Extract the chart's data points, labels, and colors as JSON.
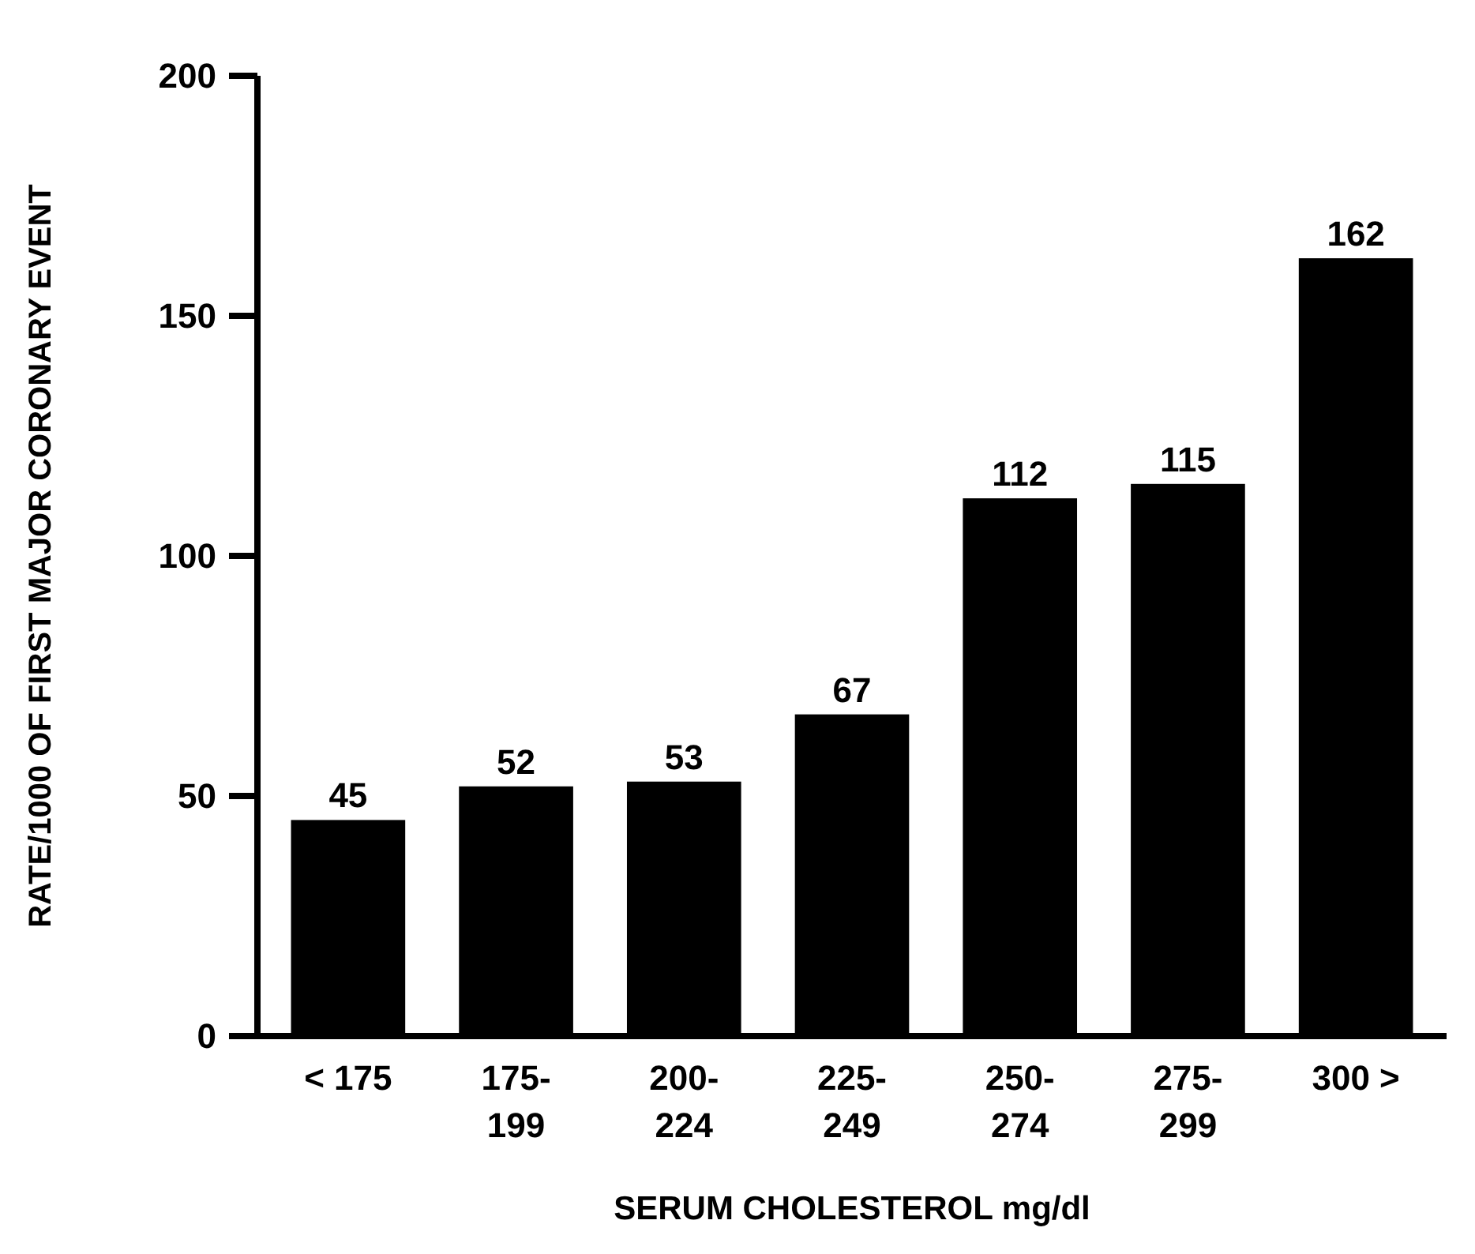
{
  "chart_data": {
    "type": "bar",
    "categories": [
      "< 175",
      "175-199",
      "200-224",
      "225-249",
      "250-274",
      "275-299",
      "300 >"
    ],
    "values": [
      45,
      52,
      53,
      67,
      112,
      115,
      162
    ],
    "color": "#000000",
    "data_labels": true,
    "ylim": [
      0,
      200
    ],
    "yticks": [
      0,
      50,
      100,
      150,
      200
    ],
    "grid": false,
    "xlabel": "SERUM CHOLESTEROL mg/dl",
    "ylabel": "RATE/1000 OF FIRST MAJOR CORONARY EVENT"
  }
}
